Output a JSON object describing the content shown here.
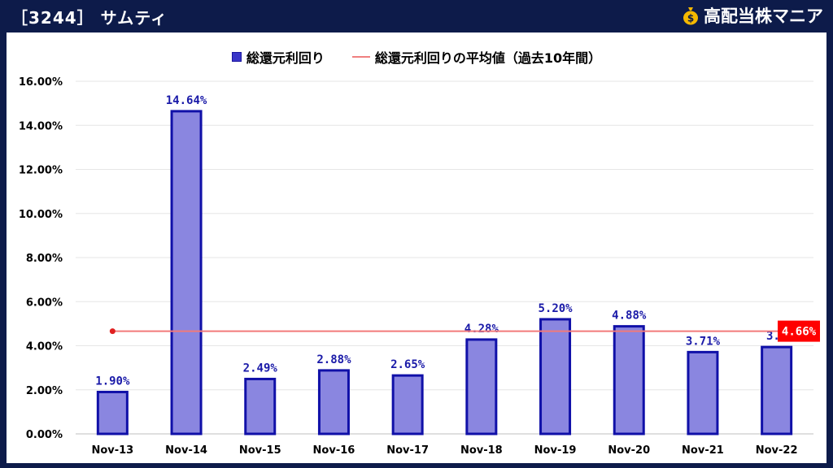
{
  "header": {
    "title": "［3244］ サムティ",
    "brand": "高配当株マニア",
    "brand_icon": "money-bag-icon"
  },
  "legend": {
    "bar_label": "総還元利回り",
    "line_label": "総還元利回りの平均値（過去10年間）"
  },
  "colors": {
    "bar_fill": "#8a86e0",
    "bar_stroke": "#1010a8",
    "avg_line": "#f27a7a",
    "avg_label_bg": "#ff0000",
    "header_bg": "#0d1b4a",
    "gridline": "#e6e6e6"
  },
  "chart_data": {
    "type": "bar",
    "categories": [
      "Nov-13",
      "Nov-14",
      "Nov-15",
      "Nov-16",
      "Nov-17",
      "Nov-18",
      "Nov-19",
      "Nov-20",
      "Nov-21",
      "Nov-22"
    ],
    "series": [
      {
        "name": "総還元利回り",
        "values": [
          1.9,
          14.64,
          2.49,
          2.88,
          2.65,
          4.28,
          5.2,
          4.88,
          3.71,
          3.94
        ],
        "labels": [
          "1.90%",
          "14.64%",
          "2.49%",
          "2.88%",
          "2.65%",
          "4.28%",
          "5.20%",
          "4.88%",
          "3.71%",
          "3.9"
        ]
      }
    ],
    "average": {
      "name": "総還元利回りの平均値（過去10年間）",
      "value": 4.66,
      "label": "4.66%"
    },
    "ylim": [
      0,
      16
    ],
    "yticks": [
      0,
      2,
      4,
      6,
      8,
      10,
      12,
      14,
      16
    ],
    "ytick_labels": [
      "0.00%",
      "2.00%",
      "4.00%",
      "6.00%",
      "8.00%",
      "10.00%",
      "12.00%",
      "14.00%",
      "16.00%"
    ],
    "grid": true,
    "legend_position": "top-center"
  }
}
